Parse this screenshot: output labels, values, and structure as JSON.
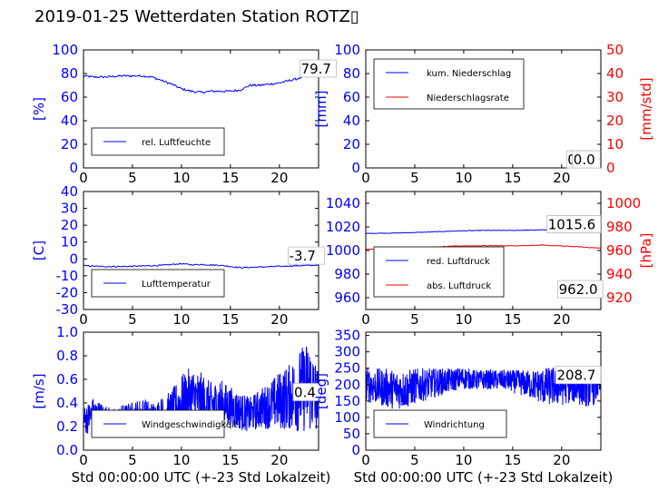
{
  "page": {
    "title": "2019-01-25 Wetterdaten Station ROTZ▯"
  },
  "colors": {
    "blue": "#0000ff",
    "red": "#ff0000",
    "black": "#000000"
  },
  "chart_data": [
    {
      "id": "humidity",
      "type": "line",
      "xlim": [
        0,
        24
      ],
      "ylim": [
        0,
        100
      ],
      "xticks": [
        0,
        5,
        10,
        15,
        20
      ],
      "yticks": [
        0,
        20,
        40,
        60,
        80,
        100
      ],
      "xlabel": "",
      "ylabel": "[%]",
      "ylabel_color": "#0000ff",
      "grid": false,
      "legend": "bottom-left",
      "series": [
        {
          "name": "rel. Luftfeuchte",
          "color": "#0000ff",
          "x": [
            0,
            1,
            2,
            4,
            6,
            7,
            8,
            9,
            10,
            11,
            12,
            13,
            14,
            15,
            16,
            17,
            18,
            19,
            20,
            21,
            22,
            23,
            24
          ],
          "y": [
            78,
            77,
            77,
            78,
            78,
            77,
            74,
            71,
            67,
            65,
            64,
            65,
            65,
            65,
            66,
            70,
            70,
            71,
            72,
            74,
            76,
            78,
            79.7
          ]
        }
      ],
      "annotation": {
        "text": "79.7",
        "x": 22.2,
        "y": 80
      }
    },
    {
      "id": "precipitation",
      "type": "line",
      "xlim": [
        0,
        24
      ],
      "ylim": [
        0,
        100
      ],
      "y2lim": [
        0,
        50
      ],
      "xticks": [
        0,
        5,
        10,
        15,
        20
      ],
      "yticks": [
        0,
        20,
        40,
        60,
        80,
        100
      ],
      "y2ticks": [
        0,
        10,
        20,
        30,
        40,
        50
      ],
      "xlabel": "",
      "ylabel": "[mm]",
      "ylabel_color": "#0000ff",
      "y2label": "[mm/std]",
      "y2label_color": "#ff0000",
      "grid": false,
      "legend": "top-left",
      "series": [
        {
          "name": "kum. Niederschlag",
          "color": "#0000ff",
          "x": [
            0,
            24
          ],
          "y": [
            0,
            0
          ]
        },
        {
          "name": "Niederschlagsrate",
          "color": "#ff0000",
          "x": [
            0,
            24
          ],
          "y": [
            0,
            0
          ]
        }
      ],
      "annotation": {
        "text": "0.0",
        "x": 20.6,
        "y": 3
      },
      "annotation2": {
        "text": "0.0",
        "x": 21.2,
        "y": 3
      }
    },
    {
      "id": "temperature",
      "type": "line",
      "xlim": [
        0,
        24
      ],
      "ylim": [
        -30,
        40
      ],
      "xticks": [
        0,
        5,
        10,
        15,
        20
      ],
      "yticks": [
        -30,
        -20,
        -10,
        0,
        10,
        20,
        30,
        40
      ],
      "xlabel": "",
      "ylabel": "[C]",
      "ylabel_color": "#0000ff",
      "grid": false,
      "legend": "bottom-left",
      "series": [
        {
          "name": "Lufttemperatur",
          "color": "#0000ff",
          "x": [
            0,
            2,
            4,
            6,
            8,
            9,
            10,
            11,
            12,
            14,
            16,
            17,
            18,
            20,
            22,
            24
          ],
          "y": [
            -4,
            -4.5,
            -4.5,
            -4.2,
            -3.8,
            -3.3,
            -2.8,
            -3.5,
            -3.3,
            -3.8,
            -5.2,
            -5,
            -4.8,
            -4.4,
            -4,
            -3.7
          ]
        }
      ],
      "annotation": {
        "text": "-3.7",
        "x": 21.0,
        "y": -1
      }
    },
    {
      "id": "pressure",
      "type": "line",
      "xlim": [
        0,
        24
      ],
      "ylim": [
        950,
        1050
      ],
      "y2lim": [
        910,
        1010
      ],
      "xticks": [
        0,
        5,
        10,
        15,
        20
      ],
      "yticks": [
        960,
        980,
        1000,
        1020,
        1040
      ],
      "y2ticks": [
        920,
        940,
        960,
        980,
        1000
      ],
      "xlabel": "",
      "ylabel": "",
      "y2label": "[hPa]",
      "y2label_color": "#ff0000",
      "grid": false,
      "legend": "bottom-left",
      "series": [
        {
          "name": "red. Luftdruck",
          "color": "#0000ff",
          "x": [
            0,
            3,
            6,
            9,
            12,
            15,
            18,
            21,
            24
          ],
          "y": [
            1014.5,
            1014.8,
            1015.5,
            1016.5,
            1017,
            1017,
            1017.5,
            1016.5,
            1015.6
          ]
        },
        {
          "name": "abs. Luftdruck",
          "color": "#ff0000",
          "x": [
            0,
            3,
            6,
            9,
            12,
            15,
            18,
            21,
            24
          ],
          "y": [
            961,
            961.5,
            962.5,
            963.8,
            964,
            964,
            964.5,
            963.5,
            962.0
          ]
        }
      ],
      "annotation": {
        "text": "1015.6",
        "x": 18.6,
        "y": 1018
      },
      "annotation2": {
        "text": "962.0",
        "x": 19.7,
        "y": 963
      }
    },
    {
      "id": "windspeed",
      "type": "line",
      "xlim": [
        0,
        24
      ],
      "ylim": [
        0,
        1.0
      ],
      "xticks": [
        0,
        5,
        10,
        15,
        20
      ],
      "yticks": [
        0.0,
        0.2,
        0.4,
        0.6,
        0.8,
        1.0
      ],
      "xlabel": "Std 00:00:00 UTC (+-23 Std Lokalzeit)",
      "ylabel": "[m/s]",
      "ylabel_color": "#0000ff",
      "grid": false,
      "legend": "bottom-left",
      "series": [
        {
          "name": "Windgeschwindigkeit",
          "color": "#0000ff",
          "x": [
            0,
            1,
            2,
            3,
            4,
            5,
            6,
            7,
            8,
            9,
            10,
            11,
            12,
            13,
            14,
            15,
            16,
            17,
            18,
            19,
            20,
            21,
            22,
            23,
            24
          ],
          "y": [
            0.25,
            0.3,
            0.28,
            0.25,
            0.27,
            0.28,
            0.3,
            0.28,
            0.3,
            0.33,
            0.4,
            0.45,
            0.42,
            0.38,
            0.4,
            0.36,
            0.33,
            0.3,
            0.35,
            0.38,
            0.42,
            0.45,
            0.5,
            0.55,
            0.4
          ],
          "noise": [
            0.12,
            0.15,
            0.12,
            0.1,
            0.12,
            0.13,
            0.15,
            0.13,
            0.15,
            0.18,
            0.24,
            0.26,
            0.24,
            0.2,
            0.2,
            0.18,
            0.16,
            0.15,
            0.17,
            0.2,
            0.25,
            0.28,
            0.35,
            0.4,
            0.3
          ]
        }
      ],
      "annotation": {
        "text": "0.4",
        "x": 21.5,
        "y": 0.45
      }
    },
    {
      "id": "winddirection",
      "type": "line",
      "xlim": [
        0,
        24
      ],
      "ylim": [
        0,
        360
      ],
      "xticks": [
        0,
        5,
        10,
        15,
        20
      ],
      "yticks": [
        0,
        50,
        100,
        150,
        200,
        250,
        300,
        350
      ],
      "xlabel": "Std 00:00:00 UTC (+-23 Std Lokalzeit)",
      "ylabel": "[deg]",
      "ylabel_color": "#0000ff",
      "grid": false,
      "legend": "bottom-left",
      "series": [
        {
          "name": "Windrichtung",
          "color": "#0000ff",
          "x": [
            0,
            1,
            2,
            3,
            4,
            5,
            6,
            7,
            8,
            9,
            10,
            11,
            12,
            13,
            14,
            15,
            16,
            17,
            18,
            19,
            20,
            21,
            22,
            23,
            24
          ],
          "y": [
            200,
            195,
            190,
            185,
            185,
            195,
            200,
            205,
            210,
            215,
            220,
            215,
            215,
            215,
            215,
            210,
            205,
            200,
            195,
            195,
            195,
            200,
            195,
            190,
            208.7
          ],
          "noise": [
            55,
            55,
            60,
            60,
            60,
            55,
            50,
            45,
            40,
            35,
            35,
            30,
            30,
            30,
            30,
            35,
            40,
            45,
            55,
            60,
            60,
            55,
            60,
            60,
            50
          ]
        }
      ],
      "annotation": {
        "text": "208.7",
        "x": 19.5,
        "y": 214
      }
    }
  ]
}
